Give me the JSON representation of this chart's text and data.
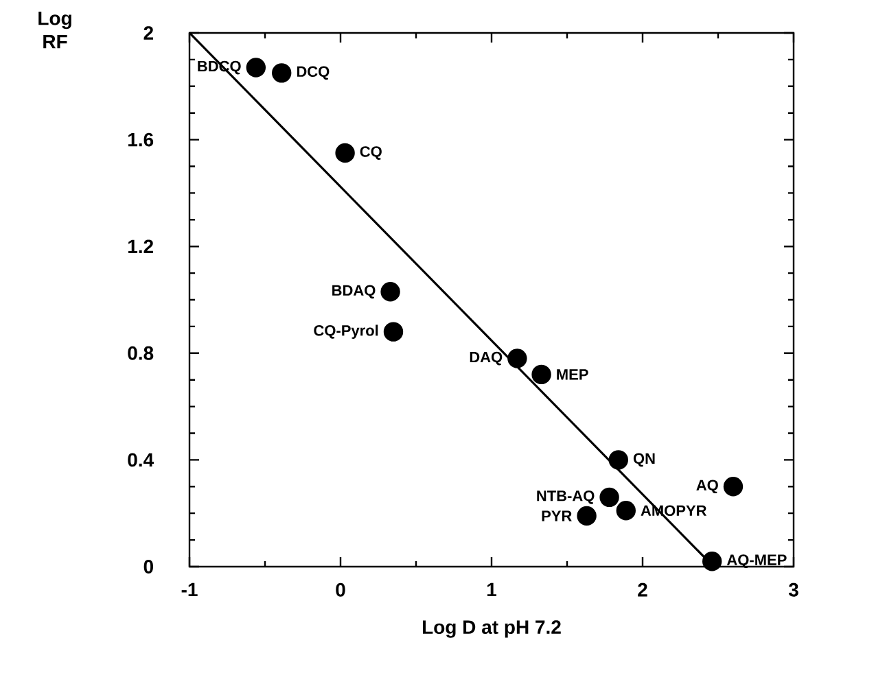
{
  "chart_data": {
    "type": "scatter",
    "xlabel": "Log D at pH 7.2",
    "ylabel": "Log RF",
    "xlim": [
      -1,
      3
    ],
    "xticks": [
      -1,
      0,
      1,
      2,
      3
    ],
    "ylim": [
      0,
      2
    ],
    "yticks": [
      0,
      0.4,
      0.8,
      1.2,
      1.6,
      2
    ],
    "grid": false,
    "series": [
      {
        "marker": "circle",
        "color": "#000000",
        "x": [
          -0.56,
          -0.39,
          0.03,
          0.33,
          0.35,
          1.17,
          1.33,
          1.84,
          1.78,
          1.63,
          1.89,
          2.6,
          2.46
        ],
        "values": [
          1.87,
          1.85,
          1.55,
          1.03,
          0.88,
          0.78,
          0.72,
          0.4,
          0.26,
          0.19,
          0.21,
          0.3,
          0.02
        ]
      },
      {
        "type": "line",
        "color": "#000000",
        "marker": "none",
        "x": [
          -1,
          2.47
        ],
        "values": [
          2,
          0
        ]
      }
    ],
    "annotations": [
      {
        "text": "BDCQ",
        "x": -0.56,
        "y": 1.87
      },
      {
        "text": "DCQ",
        "x": -0.39,
        "y": 1.85
      },
      {
        "text": "CQ",
        "x": 0.03,
        "y": 1.55
      },
      {
        "text": "BDAQ",
        "x": 0.33,
        "y": 1.03
      },
      {
        "text": "CQ-Pyrol",
        "x": 0.35,
        "y": 0.88
      },
      {
        "text": "DAQ",
        "x": 1.17,
        "y": 0.78
      },
      {
        "text": "MEP",
        "x": 1.33,
        "y": 0.72
      },
      {
        "text": "QN",
        "x": 1.84,
        "y": 0.4
      },
      {
        "text": "NTB-AQ",
        "x": 1.78,
        "y": 0.26
      },
      {
        "text": "PYR",
        "x": 1.63,
        "y": 0.19
      },
      {
        "text": "AMOPYR",
        "x": 1.89,
        "y": 0.21
      },
      {
        "text": "AQ",
        "x": 2.6,
        "y": 0.3
      },
      {
        "text": "AQ-MEP",
        "x": 2.46,
        "y": 0.02
      }
    ]
  }
}
